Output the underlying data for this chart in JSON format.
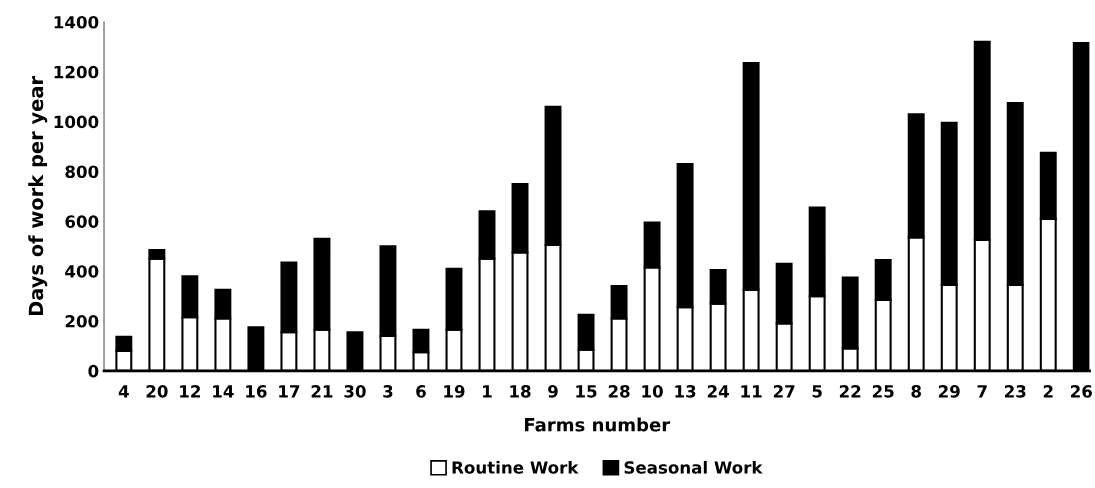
{
  "chart_data": {
    "type": "bar",
    "stacked": true,
    "xlabel": "Farms number",
    "ylabel": "Days of work per year",
    "categories": [
      "4",
      "20",
      "12",
      "14",
      "16",
      "17",
      "21",
      "30",
      "3",
      "6",
      "19",
      "1",
      "18",
      "9",
      "15",
      "28",
      "10",
      "13",
      "24",
      "11",
      "27",
      "5",
      "22",
      "25",
      "8",
      "29",
      "7",
      "23",
      "2",
      "26"
    ],
    "series": [
      {
        "name": "Routine Work",
        "color": "#ffffff",
        "values": [
          80,
          450,
          215,
          210,
          0,
          155,
          165,
          0,
          140,
          75,
          165,
          450,
          475,
          505,
          85,
          210,
          415,
          255,
          270,
          325,
          190,
          300,
          90,
          285,
          535,
          345,
          525,
          345,
          610,
          0
        ]
      },
      {
        "name": "Seasonal Work",
        "color": "#000000",
        "values": [
          57,
          35,
          165,
          115,
          175,
          280,
          365,
          155,
          360,
          90,
          245,
          190,
          275,
          555,
          140,
          130,
          180,
          575,
          135,
          910,
          240,
          355,
          285,
          160,
          495,
          650,
          795,
          730,
          265,
          1315
        ]
      }
    ],
    "ylim": [
      0,
      1400
    ],
    "yticks": [
      0,
      200,
      400,
      600,
      800,
      1000,
      1200,
      1400
    ],
    "grid": false,
    "legend": "bottom"
  }
}
